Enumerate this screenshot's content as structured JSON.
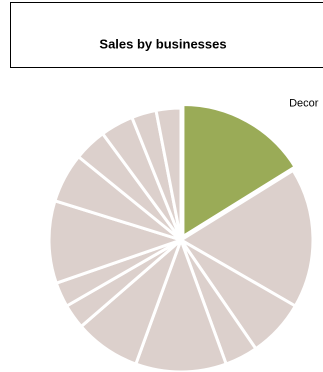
{
  "chart_data": {
    "type": "pie",
    "title": "Sales by businesses",
    "categories": [
      "Decor",
      null,
      null,
      null,
      null,
      null,
      null,
      null,
      null,
      null,
      null,
      null,
      null,
      null
    ],
    "values": [
      16,
      17,
      7,
      4,
      11,
      8,
      3,
      3,
      10,
      6,
      4,
      4,
      3,
      3
    ],
    "colors": [
      "#9aab57",
      "#dcd0cc",
      "#dcd0cc",
      "#dcd0cc",
      "#dcd0cc",
      "#dcd0cc",
      "#dcd0cc",
      "#dcd0cc",
      "#dcd0cc",
      "#dcd0cc",
      "#dcd0cc",
      "#dcd0cc",
      "#dcd0cc",
      "#dcd0cc"
    ]
  }
}
